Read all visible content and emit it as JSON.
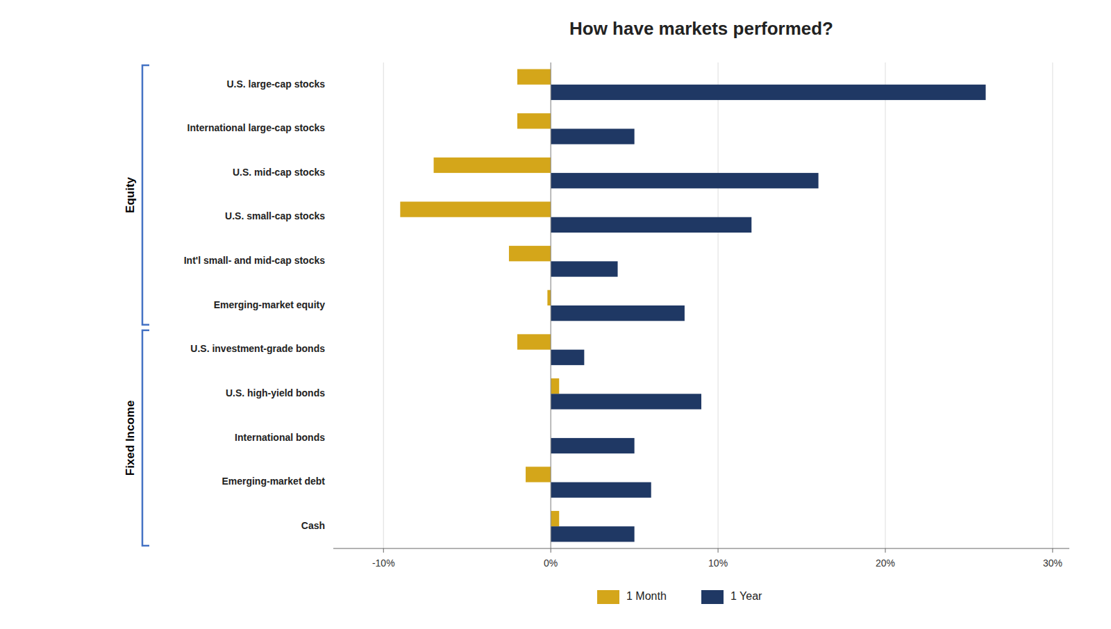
{
  "chart_data": {
    "type": "bar",
    "orientation": "horizontal",
    "title": "How have markets performed?",
    "categories": [
      "U.S. large-cap stocks",
      "International large-cap stocks",
      "U.S. mid-cap stocks",
      "U.S. small-cap stocks",
      "Int'l small- and mid-cap stocks",
      "Emerging-market equity",
      "U.S. investment-grade bonds",
      "U.S. high-yield bonds",
      "International bonds",
      "Emerging-market debt",
      "Cash"
    ],
    "series": [
      {
        "name": "1 Month",
        "color": "#D4A61A",
        "values": [
          -2.0,
          -2.0,
          -7.0,
          -9.0,
          -2.5,
          -0.2,
          -2.0,
          0.5,
          0.0,
          -1.5,
          0.5
        ]
      },
      {
        "name": "1 Year",
        "color": "#1F3864",
        "values": [
          26.0,
          5.0,
          16.0,
          12.0,
          4.0,
          8.0,
          2.0,
          9.0,
          5.0,
          6.0,
          5.0
        ]
      }
    ],
    "xlim": [
      -13,
      31
    ],
    "xticks": [
      {
        "value": -10,
        "label": "-10%"
      },
      {
        "value": 0,
        "label": "0%"
      },
      {
        "value": 10,
        "label": "10%"
      },
      {
        "value": 20,
        "label": "20%"
      },
      {
        "value": 30,
        "label": "30%"
      }
    ],
    "grid": true,
    "legend": "bottom",
    "annotations": [
      {
        "text": "Equity",
        "count": 6,
        "color": "#4472C4"
      },
      {
        "text": "Fixed Income",
        "count": 5,
        "color": "#4472C4"
      }
    ]
  }
}
